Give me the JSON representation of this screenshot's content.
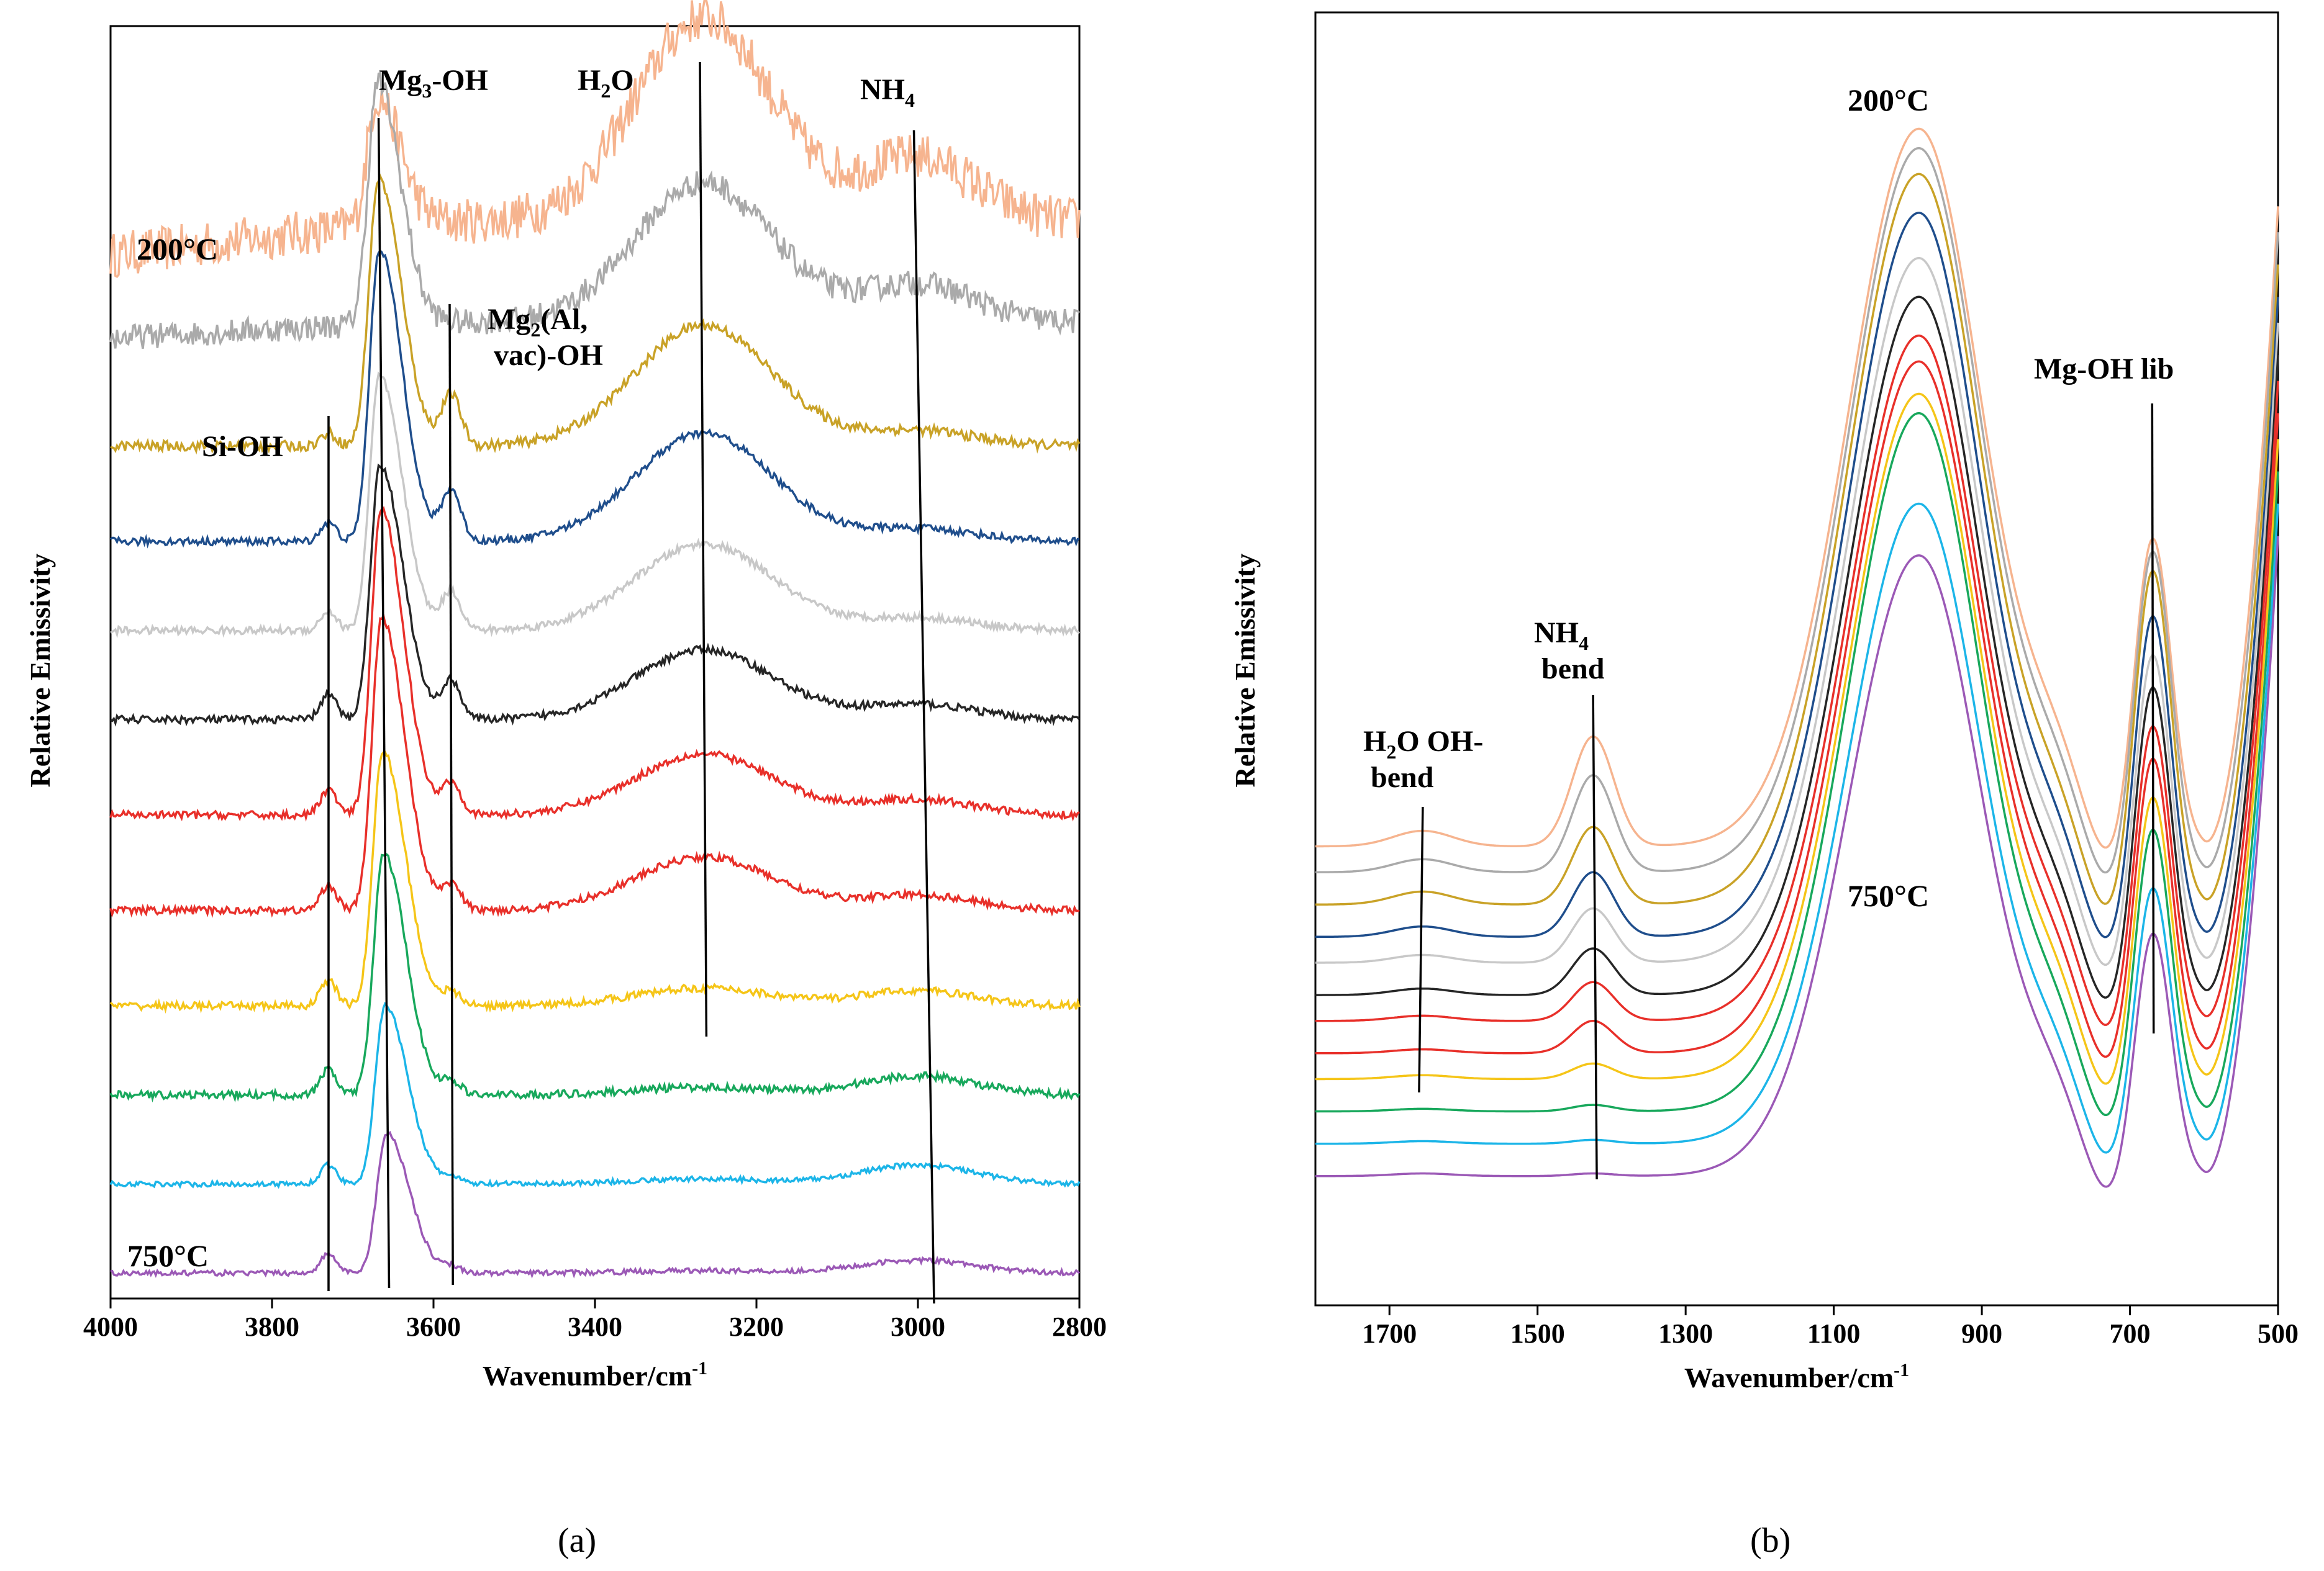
{
  "figure": {
    "panel_a_caption": "(a)",
    "panel_b_caption": "(b)",
    "temperature_top": "200°C",
    "temperature_bottom": "750°C"
  },
  "colors": [
    "#F6B48F",
    "#AAAAAA",
    "#C9A227",
    "#1F4E8C",
    "#C8C8C8",
    "#262626",
    "#E8302A",
    "#E8302A",
    "#F5C518",
    "#18A85C",
    "#1CB5E8",
    "#9B59B6"
  ],
  "chart_data": [
    {
      "type": "line",
      "panel": "a",
      "title": "",
      "xlabel": "Wavenumber/cm",
      "xlabel_sup": "-1",
      "ylabel": "Relative Emissivity",
      "xlim": [
        4000,
        2800
      ],
      "x_ticks": [
        4000,
        3800,
        3600,
        3400,
        3200,
        3000,
        2800
      ],
      "y_ticks": false,
      "series_labels": {
        "top": "200°C",
        "bottom": "750°C"
      },
      "series": [
        {
          "name": "200°C",
          "offset": 0.82,
          "noise": 0.018,
          "values": {
            "si": 0.0,
            "mg3": 0.1,
            "mg3_pos": 3670,
            "mg2": 0.0,
            "h2o": 0.16,
            "nh4": 0.05,
            "baseline_slope": 0.22
          }
        },
        {
          "name": "s2",
          "offset": 0.755,
          "noise": 0.01,
          "values": {
            "si": 0.0,
            "mg3": 0.19,
            "mg3_pos": 3669,
            "mg2": 0.0,
            "h2o": 0.11,
            "nh4": 0.03,
            "baseline_slope": 0.1
          }
        },
        {
          "name": "s3",
          "offset": 0.67,
          "noise": 0.004,
          "values": {
            "si": 0.01,
            "mg3": 0.21,
            "mg3_pos": 3668,
            "mg2": 0.04,
            "h2o": 0.095,
            "nh4": 0.012,
            "baseline_slope": 0.0
          }
        },
        {
          "name": "s4",
          "offset": 0.595,
          "noise": 0.003,
          "values": {
            "si": 0.015,
            "mg3": 0.23,
            "mg3_pos": 3667,
            "mg2": 0.04,
            "h2o": 0.085,
            "nh4": 0.01,
            "baseline_slope": 0.0
          }
        },
        {
          "name": "s5",
          "offset": 0.525,
          "noise": 0.003,
          "values": {
            "si": 0.015,
            "mg3": 0.2,
            "mg3_pos": 3667,
            "mg2": 0.03,
            "h2o": 0.068,
            "nh4": 0.01,
            "baseline_slope": 0.0
          }
        },
        {
          "name": "s6",
          "offset": 0.455,
          "noise": 0.003,
          "values": {
            "si": 0.02,
            "mg3": 0.2,
            "mg3_pos": 3666,
            "mg2": 0.03,
            "h2o": 0.055,
            "nh4": 0.012,
            "baseline_slope": 0.0
          }
        },
        {
          "name": "s7",
          "offset": 0.38,
          "noise": 0.003,
          "values": {
            "si": 0.02,
            "mg3": 0.24,
            "mg3_pos": 3665,
            "mg2": 0.025,
            "h2o": 0.048,
            "nh4": 0.012,
            "baseline_slope": 0.0
          }
        },
        {
          "name": "s8",
          "offset": 0.305,
          "noise": 0.003,
          "values": {
            "si": 0.02,
            "mg3": 0.23,
            "mg3_pos": 3664,
            "mg2": 0.02,
            "h2o": 0.042,
            "nh4": 0.012,
            "baseline_slope": 0.0
          }
        },
        {
          "name": "s9",
          "offset": 0.23,
          "noise": 0.003,
          "values": {
            "si": 0.02,
            "mg3": 0.2,
            "mg3_pos": 3663,
            "mg2": 0.01,
            "h2o": 0.014,
            "nh4": 0.012,
            "baseline_slope": 0.0
          }
        },
        {
          "name": "s10",
          "offset": 0.16,
          "noise": 0.003,
          "values": {
            "si": 0.02,
            "mg3": 0.19,
            "mg3_pos": 3662,
            "mg2": 0.01,
            "h2o": 0.006,
            "nh4": 0.015,
            "baseline_slope": 0.0
          }
        },
        {
          "name": "s11",
          "offset": 0.09,
          "noise": 0.002,
          "values": {
            "si": 0.015,
            "mg3": 0.14,
            "mg3_pos": 3660,
            "mg2": 0.005,
            "h2o": 0.004,
            "nh4": 0.015,
            "baseline_slope": 0.0
          }
        },
        {
          "name": "750°C",
          "offset": 0.02,
          "noise": 0.002,
          "values": {
            "si": 0.015,
            "mg3": 0.11,
            "mg3_pos": 3658,
            "mg2": 0.005,
            "h2o": 0.002,
            "nh4": 0.01,
            "baseline_slope": 0.0
          }
        }
      ],
      "annotations": [
        {
          "text": "Mg",
          "sub": "3",
          "rest": "-OH",
          "x": 3668,
          "line_top": 3668,
          "line_bottom": 3656
        },
        {
          "text": "H",
          "sub": "2",
          "rest": "O",
          "x": 3270,
          "line_top": 3270,
          "line_bottom": 3262
        },
        {
          "text": "NH",
          "sub": "4",
          "rest": "",
          "x": 3005,
          "line_top": 3005,
          "line_bottom": 2980
        },
        {
          "text": "Si-OH",
          "x": 3730,
          "line_top": 3730,
          "line_bottom": 3730
        },
        {
          "text": "Mg",
          "sub": "2",
          "rest": "(Al,",
          "line2": "vac)-OH",
          "x": 3580,
          "line_top": 3580,
          "line_bottom": 3576
        }
      ]
    },
    {
      "type": "line",
      "panel": "b",
      "title": "",
      "xlabel": "Wavenumber/cm",
      "xlabel_sup": "-1",
      "ylabel": "Relative Emissivity",
      "xlim": [
        1800,
        500
      ],
      "x_ticks": [
        1700,
        1500,
        1300,
        1100,
        900,
        700,
        500
      ],
      "y_ticks": false,
      "series_labels": {
        "top": "200°C",
        "bottom": "750°C"
      },
      "series": [
        {
          "name": "200°C",
          "offset": 0.355,
          "values": {
            "h2o": 0.012,
            "nh4": 0.085,
            "main": 0.555,
            "mgoh": 0.25
          }
        },
        {
          "name": "s2",
          "offset": 0.335,
          "values": {
            "h2o": 0.01,
            "nh4": 0.075,
            "main": 0.56,
            "mgoh": 0.26
          }
        },
        {
          "name": "s3",
          "offset": 0.31,
          "values": {
            "h2o": 0.01,
            "nh4": 0.06,
            "main": 0.565,
            "mgoh": 0.27
          }
        },
        {
          "name": "s4",
          "offset": 0.285,
          "values": {
            "h2o": 0.008,
            "nh4": 0.05,
            "main": 0.56,
            "mgoh": 0.26
          }
        },
        {
          "name": "s5",
          "offset": 0.265,
          "values": {
            "h2o": 0.006,
            "nh4": 0.042,
            "main": 0.545,
            "mgoh": 0.25
          }
        },
        {
          "name": "s6",
          "offset": 0.24,
          "values": {
            "h2o": 0.005,
            "nh4": 0.036,
            "main": 0.54,
            "mgoh": 0.25
          }
        },
        {
          "name": "s7",
          "offset": 0.22,
          "values": {
            "h2o": 0.004,
            "nh4": 0.03,
            "main": 0.53,
            "mgoh": 0.24
          }
        },
        {
          "name": "s8",
          "offset": 0.195,
          "values": {
            "h2o": 0.003,
            "nh4": 0.025,
            "main": 0.535,
            "mgoh": 0.24
          }
        },
        {
          "name": "s9",
          "offset": 0.175,
          "values": {
            "h2o": 0.003,
            "nh4": 0.012,
            "main": 0.53,
            "mgoh": 0.23
          }
        },
        {
          "name": "s10",
          "offset": 0.15,
          "values": {
            "h2o": 0.002,
            "nh4": 0.005,
            "main": 0.54,
            "mgoh": 0.23
          }
        },
        {
          "name": "s11",
          "offset": 0.125,
          "values": {
            "h2o": 0.002,
            "nh4": 0.003,
            "main": 0.495,
            "mgoh": 0.21
          }
        },
        {
          "name": "750°C",
          "offset": 0.1,
          "values": {
            "h2o": 0.002,
            "nh4": 0.002,
            "main": 0.48,
            "mgoh": 0.2
          }
        }
      ],
      "annotations": [
        {
          "text": "H",
          "sub": "2",
          "rest": "O OH-",
          "line2": "bend",
          "x": 1655
        },
        {
          "text": "NH",
          "sub": "4",
          "rest": "",
          "line2": "bend",
          "x": 1420
        },
        {
          "text": "Mg-OH lib",
          "x": 670
        }
      ]
    }
  ]
}
